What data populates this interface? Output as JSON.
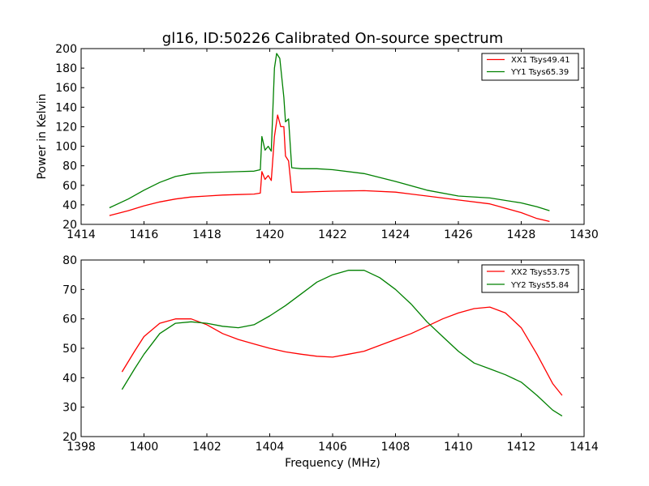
{
  "chart_data": [
    {
      "type": "line",
      "title": "gl16, ID:50226 Calibrated On-source spectrum",
      "xlabel": "",
      "ylabel": "Power in Kelvin",
      "xlim": [
        1414,
        1430
      ],
      "ylim": [
        20,
        200
      ],
      "xticks": [
        "1414",
        "1416",
        "1418",
        "1420",
        "1422",
        "1424",
        "1426",
        "1428",
        "1430"
      ],
      "yticks": [
        "20",
        "40",
        "60",
        "80",
        "100",
        "120",
        "140",
        "160",
        "180",
        "200"
      ],
      "grid": false,
      "legend_position": "top-right",
      "series": [
        {
          "name": "XX1 Tsys49.41",
          "color": "#ff0000",
          "points": [
            [
              1414.9,
              29
            ],
            [
              1415.5,
              34
            ],
            [
              1416,
              39
            ],
            [
              1416.5,
              43
            ],
            [
              1417,
              46
            ],
            [
              1417.5,
              48
            ],
            [
              1418,
              49
            ],
            [
              1418.5,
              50
            ],
            [
              1419,
              50.5
            ],
            [
              1419.5,
              51
            ],
            [
              1419.7,
              52
            ],
            [
              1419.75,
              74
            ],
            [
              1419.85,
              66
            ],
            [
              1419.95,
              70
            ],
            [
              1420.05,
              65
            ],
            [
              1420.15,
              110
            ],
            [
              1420.25,
              132
            ],
            [
              1420.35,
              120
            ],
            [
              1420.45,
              120
            ],
            [
              1420.5,
              90
            ],
            [
              1420.6,
              85
            ],
            [
              1420.7,
              53
            ],
            [
              1421,
              53
            ],
            [
              1422,
              54
            ],
            [
              1423,
              54.5
            ],
            [
              1424,
              53
            ],
            [
              1425,
              49
            ],
            [
              1426,
              45
            ],
            [
              1427,
              41
            ],
            [
              1428,
              32
            ],
            [
              1428.5,
              26
            ],
            [
              1428.9,
              23
            ]
          ]
        },
        {
          "name": "YY1 Tsys65.39",
          "color": "#008000",
          "points": [
            [
              1414.9,
              37
            ],
            [
              1415.5,
              46
            ],
            [
              1416,
              55
            ],
            [
              1416.5,
              63
            ],
            [
              1417,
              69
            ],
            [
              1417.5,
              72
            ],
            [
              1418,
              73
            ],
            [
              1418.5,
              73.5
            ],
            [
              1419,
              74
            ],
            [
              1419.5,
              74.5
            ],
            [
              1419.7,
              76
            ],
            [
              1419.75,
              110
            ],
            [
              1419.85,
              96
            ],
            [
              1419.95,
              100
            ],
            [
              1420.05,
              95
            ],
            [
              1420.15,
              180
            ],
            [
              1420.22,
              195
            ],
            [
              1420.32,
              190
            ],
            [
              1420.45,
              150
            ],
            [
              1420.5,
              125
            ],
            [
              1420.6,
              128
            ],
            [
              1420.7,
              78
            ],
            [
              1421,
              77
            ],
            [
              1421.5,
              77
            ],
            [
              1422,
              76
            ],
            [
              1423,
              72
            ],
            [
              1424,
              64
            ],
            [
              1425,
              55
            ],
            [
              1426,
              49
            ],
            [
              1427,
              47
            ],
            [
              1428,
              42
            ],
            [
              1428.5,
              38
            ],
            [
              1428.9,
              34
            ]
          ]
        }
      ]
    },
    {
      "type": "line",
      "title": "",
      "xlabel": "Frequency (MHz)",
      "ylabel": "",
      "xlim": [
        1398,
        1414
      ],
      "ylim": [
        20,
        80
      ],
      "xticks": [
        "1398",
        "1400",
        "1402",
        "1404",
        "1406",
        "1408",
        "1410",
        "1412",
        "1414"
      ],
      "yticks": [
        "20",
        "30",
        "40",
        "50",
        "60",
        "70",
        "80"
      ],
      "grid": false,
      "legend_position": "top-right",
      "series": [
        {
          "name": "XX2 Tsys53.75",
          "color": "#ff0000",
          "points": [
            [
              1399.3,
              42
            ],
            [
              1399.7,
              49
            ],
            [
              1400,
              54
            ],
            [
              1400.5,
              58.5
            ],
            [
              1401,
              60
            ],
            [
              1401.5,
              60
            ],
            [
              1402,
              58
            ],
            [
              1402.5,
              55
            ],
            [
              1403,
              53
            ],
            [
              1403.5,
              51.5
            ],
            [
              1404,
              50
            ],
            [
              1404.5,
              48.8
            ],
            [
              1405,
              48
            ],
            [
              1405.5,
              47.3
            ],
            [
              1406,
              47
            ],
            [
              1406.5,
              48
            ],
            [
              1407,
              49
            ],
            [
              1407.5,
              51
            ],
            [
              1408,
              53
            ],
            [
              1408.5,
              55
            ],
            [
              1409,
              57.5
            ],
            [
              1409.5,
              60
            ],
            [
              1410,
              62
            ],
            [
              1410.5,
              63.5
            ],
            [
              1411,
              64
            ],
            [
              1411.5,
              62
            ],
            [
              1412,
              57
            ],
            [
              1412.5,
              48
            ],
            [
              1413,
              38
            ],
            [
              1413.3,
              34
            ]
          ]
        },
        {
          "name": "YY2 Tsys55.84",
          "color": "#008000",
          "points": [
            [
              1399.3,
              36
            ],
            [
              1399.7,
              43
            ],
            [
              1400,
              48
            ],
            [
              1400.5,
              55
            ],
            [
              1401,
              58.5
            ],
            [
              1401.5,
              59
            ],
            [
              1402,
              58.5
            ],
            [
              1402.5,
              57.5
            ],
            [
              1403,
              57
            ],
            [
              1403.5,
              58
            ],
            [
              1404,
              61
            ],
            [
              1404.5,
              64.5
            ],
            [
              1405,
              68.5
            ],
            [
              1405.5,
              72.5
            ],
            [
              1406,
              75
            ],
            [
              1406.5,
              76.5
            ],
            [
              1407,
              76.5
            ],
            [
              1407.5,
              74
            ],
            [
              1408,
              70
            ],
            [
              1408.5,
              65
            ],
            [
              1409,
              59
            ],
            [
              1409.5,
              54
            ],
            [
              1410,
              49
            ],
            [
              1410.5,
              45
            ],
            [
              1411,
              43
            ],
            [
              1411.5,
              41
            ],
            [
              1412,
              38.5
            ],
            [
              1412.5,
              34
            ],
            [
              1413,
              29
            ],
            [
              1413.3,
              27
            ]
          ]
        }
      ]
    }
  ]
}
